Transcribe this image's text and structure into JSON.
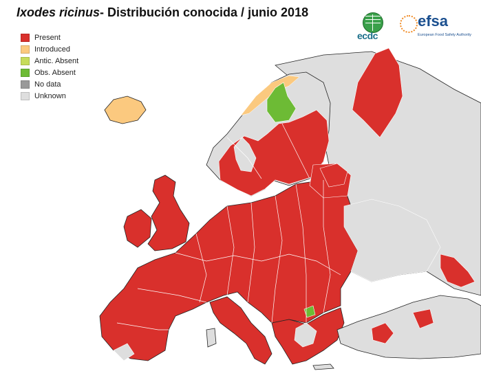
{
  "title": {
    "species": "Ixodes ricinus",
    "rest": "- Distribución conocida / junio 2018"
  },
  "legend": [
    {
      "label": "Present",
      "color": "#d9302c"
    },
    {
      "label": "Introduced",
      "color": "#fbc97f"
    },
    {
      "label": "Antic. Absent",
      "color": "#c6dc5a"
    },
    {
      "label": "Obs. Absent",
      "color": "#6dbb35"
    },
    {
      "label": "No data",
      "color": "#9a9a9a"
    },
    {
      "label": "Unknown",
      "color": "#dedede"
    }
  ],
  "logos": {
    "ecdc": {
      "text": "ecdc",
      "icon": "globe-icon"
    },
    "efsa": {
      "text": "efsa",
      "subtitle": "European Food Safety Authority",
      "icon": "efsa-mark-icon"
    }
  },
  "map_colors": {
    "present": "#d9302c",
    "introduced": "#fbc97f",
    "obs_absent": "#6dbb35",
    "unknown": "#dedede",
    "border": "#ffffff",
    "outline": "#222222",
    "sea": "#ffffff"
  }
}
